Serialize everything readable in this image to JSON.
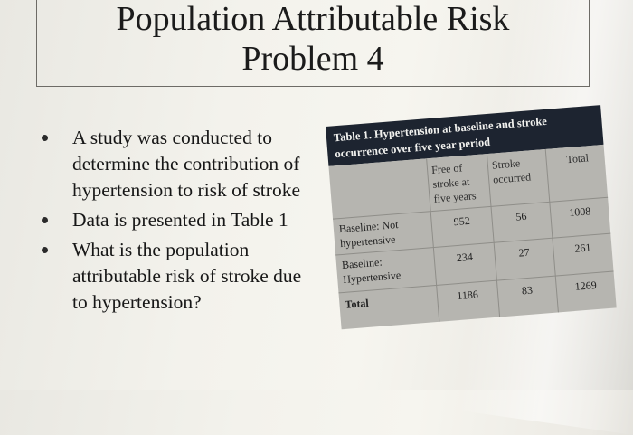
{
  "title": {
    "line1": "Population Attributable Risk",
    "line2": "Problem 4"
  },
  "bullets": [
    "A study was conducted to determine the contribution of hypertension to risk of stroke",
    "Data is presented in Table 1",
    "What is the population attributable risk of stroke due to hypertension?"
  ],
  "table": {
    "caption": "Table 1. Hypertension at baseline and stroke occurrence over five year period",
    "headers": {
      "col1": "Free of stroke at five years",
      "col2": "Stroke occurred",
      "col3": "Total"
    },
    "rows": [
      {
        "label": "Baseline: Not hypertensive",
        "free": "952",
        "stroke": "56",
        "total": "1008"
      },
      {
        "label": "Baseline: Hypertensive",
        "free": "234",
        "stroke": "27",
        "total": "261"
      },
      {
        "label": "Total",
        "free": "1186",
        "stroke": "83",
        "total": "1269"
      }
    ]
  },
  "colors": {
    "caption_bg": "#1d2430",
    "table_bg": "#b6b5b0",
    "slide_bg": "#f3f2ec"
  }
}
